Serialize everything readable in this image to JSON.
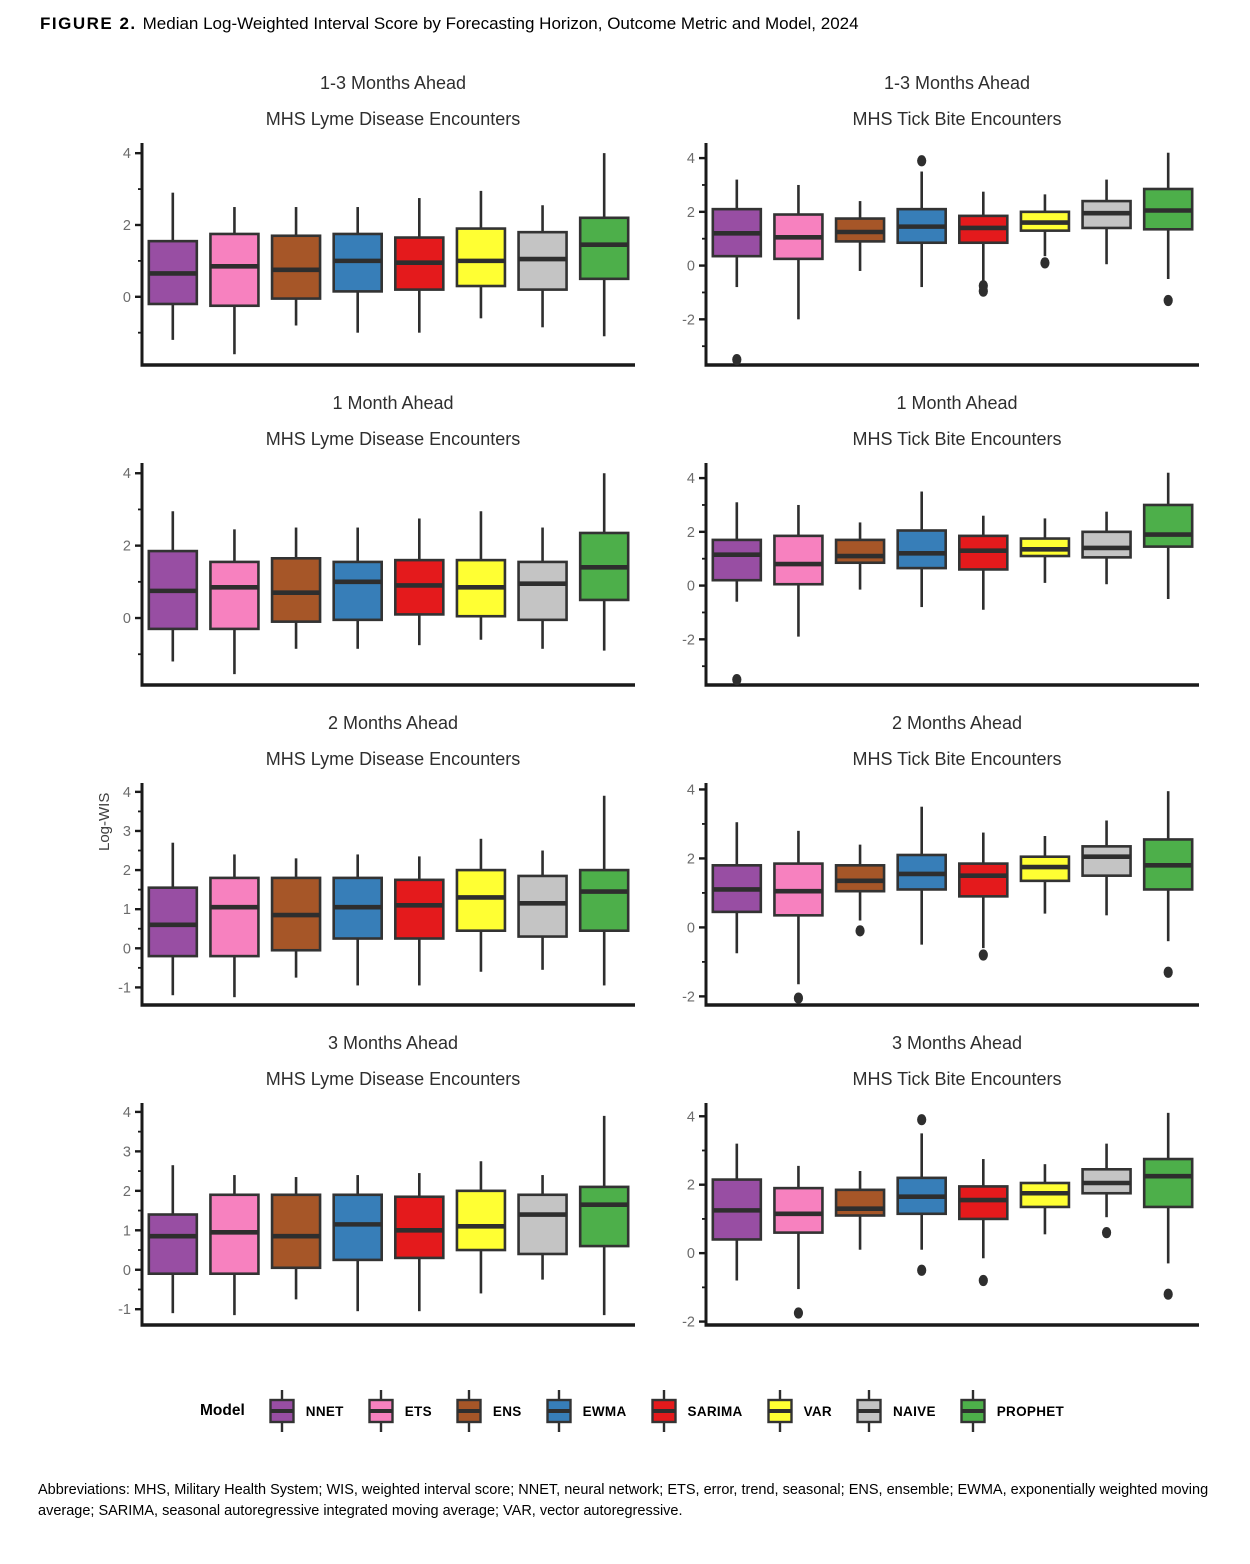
{
  "figure": {
    "label": "FIGURE 2.",
    "title": "Median Log-Weighted Interval Score by Forecasting Horizon, Outcome Metric and Model, 2024"
  },
  "ylabel": "Log-WIS",
  "legend": {
    "label": "Model",
    "items": [
      {
        "name": "NNET",
        "color": "#984EA3"
      },
      {
        "name": "ETS",
        "color": "#F781BF"
      },
      {
        "name": "ENS",
        "color": "#A65628"
      },
      {
        "name": "EWMA",
        "color": "#377EB8"
      },
      {
        "name": "SARIMA",
        "color": "#E41A1C"
      },
      {
        "name": "VAR",
        "color": "#FFFF33"
      },
      {
        "name": "NAIVE",
        "color": "#C4C4C4"
      },
      {
        "name": "PROPHET",
        "color": "#4DAF4A"
      }
    ]
  },
  "style": {
    "box_border": "#333333",
    "line_color": "#2e2e2e",
    "axis_color": "#1a1a1a",
    "tick_label_color": "#6b6b6b"
  },
  "footnote": "Abbreviations: MHS, Military Health System; WIS, weighted interval score; NNET, neural network; ETS, error, trend, seasonal; ENS, ensemble; EWMA, exponentially weighted moving average; SARIMA, seasonal autoregressive integrated moving average; VAR, vector autoregressive.",
  "chart_data": [
    {
      "type": "boxplot",
      "title": "1-3 Months Ahead",
      "subtitle": "MHS Lyme Disease Encounters",
      "ylim": [
        -1.9,
        4.2
      ],
      "yticks": [
        0,
        2,
        4
      ],
      "yticks_minor": [
        -1,
        1,
        3
      ],
      "boxes": [
        {
          "model": "NNET",
          "low": -1.2,
          "q1": -0.2,
          "median": 0.65,
          "q3": 1.55,
          "high": 2.9,
          "outliers": []
        },
        {
          "model": "ETS",
          "low": -1.6,
          "q1": -0.25,
          "median": 0.85,
          "q3": 1.75,
          "high": 2.5,
          "outliers": []
        },
        {
          "model": "ENS",
          "low": -0.8,
          "q1": -0.05,
          "median": 0.75,
          "q3": 1.7,
          "high": 2.5,
          "outliers": []
        },
        {
          "model": "EWMA",
          "low": -1.0,
          "q1": 0.15,
          "median": 1.0,
          "q3": 1.75,
          "high": 2.5,
          "outliers": []
        },
        {
          "model": "SARIMA",
          "low": -1.0,
          "q1": 0.2,
          "median": 0.95,
          "q3": 1.65,
          "high": 2.75,
          "outliers": []
        },
        {
          "model": "VAR",
          "low": -0.6,
          "q1": 0.3,
          "median": 1.0,
          "q3": 1.9,
          "high": 2.95,
          "outliers": []
        },
        {
          "model": "NAIVE",
          "low": -0.85,
          "q1": 0.2,
          "median": 1.05,
          "q3": 1.8,
          "high": 2.55,
          "outliers": []
        },
        {
          "model": "PROPHET",
          "low": -1.1,
          "q1": 0.5,
          "median": 1.45,
          "q3": 2.2,
          "high": 4.0,
          "outliers": []
        }
      ]
    },
    {
      "type": "boxplot",
      "title": "1-3 Months Ahead",
      "subtitle": "MHS Tick Bite Encounters",
      "ylim": [
        -3.7,
        4.45
      ],
      "yticks": [
        -2,
        0,
        2,
        4
      ],
      "yticks_minor": [
        -3,
        -1,
        1,
        3
      ],
      "boxes": [
        {
          "model": "NNET",
          "low": -0.8,
          "q1": 0.35,
          "median": 1.2,
          "q3": 2.1,
          "high": 3.2,
          "outliers": [
            -3.5
          ]
        },
        {
          "model": "ETS",
          "low": -2.0,
          "q1": 0.25,
          "median": 1.05,
          "q3": 1.9,
          "high": 3.0,
          "outliers": []
        },
        {
          "model": "ENS",
          "low": -0.2,
          "q1": 0.9,
          "median": 1.25,
          "q3": 1.75,
          "high": 2.4,
          "outliers": []
        },
        {
          "model": "EWMA",
          "low": -0.8,
          "q1": 0.85,
          "median": 1.45,
          "q3": 2.1,
          "high": 3.5,
          "outliers": [
            3.9
          ]
        },
        {
          "model": "SARIMA",
          "low": -0.6,
          "q1": 0.85,
          "median": 1.4,
          "q3": 1.85,
          "high": 2.75,
          "outliers": [
            -0.75,
            -0.95
          ]
        },
        {
          "model": "VAR",
          "low": 0.35,
          "q1": 1.3,
          "median": 1.6,
          "q3": 2.0,
          "high": 2.65,
          "outliers": [
            0.1
          ]
        },
        {
          "model": "NAIVE",
          "low": 0.05,
          "q1": 1.4,
          "median": 1.95,
          "q3": 2.4,
          "high": 3.2,
          "outliers": []
        },
        {
          "model": "PROPHET",
          "low": -0.5,
          "q1": 1.35,
          "median": 2.05,
          "q3": 2.85,
          "high": 4.2,
          "outliers": [
            -1.3
          ]
        }
      ]
    },
    {
      "type": "boxplot",
      "title": "1 Month Ahead",
      "subtitle": "MHS Lyme Disease Encounters",
      "ylim": [
        -1.85,
        4.2
      ],
      "yticks": [
        0,
        2,
        4
      ],
      "yticks_minor": [
        -1,
        1,
        3
      ],
      "boxes": [
        {
          "model": "NNET",
          "low": -1.2,
          "q1": -0.3,
          "median": 0.75,
          "q3": 1.85,
          "high": 2.95,
          "outliers": []
        },
        {
          "model": "ETS",
          "low": -1.55,
          "q1": -0.3,
          "median": 0.85,
          "q3": 1.55,
          "high": 2.45,
          "outliers": []
        },
        {
          "model": "ENS",
          "low": -0.85,
          "q1": -0.1,
          "median": 0.7,
          "q3": 1.65,
          "high": 2.5,
          "outliers": []
        },
        {
          "model": "EWMA",
          "low": -0.85,
          "q1": -0.05,
          "median": 1.0,
          "q3": 1.55,
          "high": 2.5,
          "outliers": []
        },
        {
          "model": "SARIMA",
          "low": -0.75,
          "q1": 0.1,
          "median": 0.9,
          "q3": 1.6,
          "high": 2.75,
          "outliers": []
        },
        {
          "model": "VAR",
          "low": -0.6,
          "q1": 0.05,
          "median": 0.85,
          "q3": 1.6,
          "high": 2.95,
          "outliers": []
        },
        {
          "model": "NAIVE",
          "low": -0.85,
          "q1": -0.05,
          "median": 0.95,
          "q3": 1.55,
          "high": 2.5,
          "outliers": []
        },
        {
          "model": "PROPHET",
          "low": -0.9,
          "q1": 0.5,
          "median": 1.4,
          "q3": 2.35,
          "high": 4.0,
          "outliers": []
        }
      ]
    },
    {
      "type": "boxplot",
      "title": "1 Month Ahead",
      "subtitle": "MHS Tick Bite Encounters",
      "ylim": [
        -3.7,
        4.45
      ],
      "yticks": [
        -2,
        0,
        2,
        4
      ],
      "yticks_minor": [
        -3,
        -1,
        1,
        3
      ],
      "boxes": [
        {
          "model": "NNET",
          "low": -0.6,
          "q1": 0.2,
          "median": 1.15,
          "q3": 1.7,
          "high": 3.1,
          "outliers": [
            -3.5
          ]
        },
        {
          "model": "ETS",
          "low": -1.9,
          "q1": 0.05,
          "median": 0.8,
          "q3": 1.85,
          "high": 3.0,
          "outliers": []
        },
        {
          "model": "ENS",
          "low": -0.15,
          "q1": 0.85,
          "median": 1.1,
          "q3": 1.7,
          "high": 2.35,
          "outliers": []
        },
        {
          "model": "EWMA",
          "low": -0.8,
          "q1": 0.65,
          "median": 1.2,
          "q3": 2.05,
          "high": 3.5,
          "outliers": []
        },
        {
          "model": "SARIMA",
          "low": -0.9,
          "q1": 0.6,
          "median": 1.3,
          "q3": 1.85,
          "high": 2.6,
          "outliers": []
        },
        {
          "model": "VAR",
          "low": 0.1,
          "q1": 1.1,
          "median": 1.35,
          "q3": 1.75,
          "high": 2.5,
          "outliers": []
        },
        {
          "model": "NAIVE",
          "low": 0.05,
          "q1": 1.05,
          "median": 1.4,
          "q3": 2.0,
          "high": 2.75,
          "outliers": []
        },
        {
          "model": "PROPHET",
          "low": -0.5,
          "q1": 1.45,
          "median": 1.9,
          "q3": 3.0,
          "high": 4.2,
          "outliers": []
        }
      ]
    },
    {
      "type": "boxplot",
      "title": "2 Months Ahead",
      "subtitle": "MHS Lyme Disease Encounters",
      "ylim": [
        -1.45,
        4.15
      ],
      "yticks": [
        -1,
        0,
        1,
        2,
        3,
        4
      ],
      "yticks_minor": [
        -0.5,
        0.5,
        1.5,
        2.5,
        3.5
      ],
      "boxes": [
        {
          "model": "NNET",
          "low": -1.2,
          "q1": -0.2,
          "median": 0.6,
          "q3": 1.55,
          "high": 2.7,
          "outliers": []
        },
        {
          "model": "ETS",
          "low": -1.25,
          "q1": -0.2,
          "median": 1.05,
          "q3": 1.8,
          "high": 2.4,
          "outliers": []
        },
        {
          "model": "ENS",
          "low": -0.75,
          "q1": -0.05,
          "median": 0.85,
          "q3": 1.8,
          "high": 2.3,
          "outliers": []
        },
        {
          "model": "EWMA",
          "low": -0.95,
          "q1": 0.25,
          "median": 1.05,
          "q3": 1.8,
          "high": 2.4,
          "outliers": []
        },
        {
          "model": "SARIMA",
          "low": -0.95,
          "q1": 0.25,
          "median": 1.1,
          "q3": 1.75,
          "high": 2.35,
          "outliers": []
        },
        {
          "model": "VAR",
          "low": -0.6,
          "q1": 0.45,
          "median": 1.3,
          "q3": 2.0,
          "high": 2.8,
          "outliers": []
        },
        {
          "model": "NAIVE",
          "low": -0.55,
          "q1": 0.3,
          "median": 1.15,
          "q3": 1.85,
          "high": 2.5,
          "outliers": []
        },
        {
          "model": "PROPHET",
          "low": -0.95,
          "q1": 0.45,
          "median": 1.45,
          "q3": 2.0,
          "high": 3.9,
          "outliers": []
        }
      ]
    },
    {
      "type": "boxplot",
      "title": "2 Months Ahead",
      "subtitle": "MHS Tick Bite Encounters",
      "ylim": [
        -2.25,
        4.1
      ],
      "yticks": [
        -2,
        0,
        2,
        4
      ],
      "yticks_minor": [
        -1,
        1,
        3
      ],
      "boxes": [
        {
          "model": "NNET",
          "low": -0.75,
          "q1": 0.45,
          "median": 1.1,
          "q3": 1.8,
          "high": 3.05,
          "outliers": []
        },
        {
          "model": "ETS",
          "low": -1.65,
          "q1": 0.35,
          "median": 1.05,
          "q3": 1.85,
          "high": 2.8,
          "outliers": [
            -2.05
          ]
        },
        {
          "model": "ENS",
          "low": 0.2,
          "q1": 1.05,
          "median": 1.35,
          "q3": 1.8,
          "high": 2.4,
          "outliers": [
            -0.1
          ]
        },
        {
          "model": "EWMA",
          "low": -0.5,
          "q1": 1.1,
          "median": 1.55,
          "q3": 2.1,
          "high": 3.5,
          "outliers": []
        },
        {
          "model": "SARIMA",
          "low": -0.6,
          "q1": 0.9,
          "median": 1.5,
          "q3": 1.85,
          "high": 2.75,
          "outliers": [
            -0.8
          ]
        },
        {
          "model": "VAR",
          "low": 0.4,
          "q1": 1.35,
          "median": 1.75,
          "q3": 2.05,
          "high": 2.65,
          "outliers": []
        },
        {
          "model": "NAIVE",
          "low": 0.35,
          "q1": 1.5,
          "median": 2.05,
          "q3": 2.35,
          "high": 3.1,
          "outliers": []
        },
        {
          "model": "PROPHET",
          "low": -0.4,
          "q1": 1.1,
          "median": 1.8,
          "q3": 2.55,
          "high": 3.95,
          "outliers": [
            -1.3
          ]
        }
      ]
    },
    {
      "type": "boxplot",
      "title": "3 Months Ahead",
      "subtitle": "MHS Lyme Disease Encounters",
      "ylim": [
        -1.4,
        4.15
      ],
      "yticks": [
        -1,
        0,
        1,
        2,
        3,
        4
      ],
      "yticks_minor": [
        -0.5,
        0.5,
        1.5,
        2.5,
        3.5
      ],
      "boxes": [
        {
          "model": "NNET",
          "low": -1.1,
          "q1": -0.1,
          "median": 0.85,
          "q3": 1.4,
          "high": 2.65,
          "outliers": []
        },
        {
          "model": "ETS",
          "low": -1.15,
          "q1": -0.1,
          "median": 0.95,
          "q3": 1.9,
          "high": 2.4,
          "outliers": []
        },
        {
          "model": "ENS",
          "low": -0.75,
          "q1": 0.05,
          "median": 0.85,
          "q3": 1.9,
          "high": 2.35,
          "outliers": []
        },
        {
          "model": "EWMA",
          "low": -1.05,
          "q1": 0.25,
          "median": 1.15,
          "q3": 1.9,
          "high": 2.4,
          "outliers": []
        },
        {
          "model": "SARIMA",
          "low": -1.05,
          "q1": 0.3,
          "median": 1.0,
          "q3": 1.85,
          "high": 2.45,
          "outliers": []
        },
        {
          "model": "VAR",
          "low": -0.6,
          "q1": 0.5,
          "median": 1.1,
          "q3": 2.0,
          "high": 2.75,
          "outliers": []
        },
        {
          "model": "NAIVE",
          "low": -0.25,
          "q1": 0.4,
          "median": 1.4,
          "q3": 1.9,
          "high": 2.4,
          "outliers": []
        },
        {
          "model": "PROPHET",
          "low": -1.15,
          "q1": 0.6,
          "median": 1.65,
          "q3": 2.1,
          "high": 3.9,
          "outliers": []
        }
      ]
    },
    {
      "type": "boxplot",
      "title": "3 Months Ahead",
      "subtitle": "MHS Tick Bite Encounters",
      "ylim": [
        -2.1,
        4.3
      ],
      "yticks": [
        -2,
        0,
        2,
        4
      ],
      "yticks_minor": [
        -1,
        1,
        3
      ],
      "boxes": [
        {
          "model": "NNET",
          "low": -0.8,
          "q1": 0.4,
          "median": 1.25,
          "q3": 2.15,
          "high": 3.2,
          "outliers": []
        },
        {
          "model": "ETS",
          "low": -1.05,
          "q1": 0.6,
          "median": 1.15,
          "q3": 1.9,
          "high": 2.55,
          "outliers": [
            -1.75
          ]
        },
        {
          "model": "ENS",
          "low": 0.1,
          "q1": 1.1,
          "median": 1.3,
          "q3": 1.85,
          "high": 2.4,
          "outliers": []
        },
        {
          "model": "EWMA",
          "low": 0.1,
          "q1": 1.15,
          "median": 1.65,
          "q3": 2.2,
          "high": 3.5,
          "outliers": [
            3.9,
            -0.5
          ]
        },
        {
          "model": "SARIMA",
          "low": -0.15,
          "q1": 1.0,
          "median": 1.55,
          "q3": 1.95,
          "high": 2.75,
          "outliers": [
            -0.8
          ]
        },
        {
          "model": "VAR",
          "low": 0.55,
          "q1": 1.35,
          "median": 1.75,
          "q3": 2.05,
          "high": 2.6,
          "outliers": []
        },
        {
          "model": "NAIVE",
          "low": 1.05,
          "q1": 1.75,
          "median": 2.05,
          "q3": 2.45,
          "high": 3.2,
          "outliers": [
            0.6
          ]
        },
        {
          "model": "PROPHET",
          "low": -0.3,
          "q1": 1.35,
          "median": 2.25,
          "q3": 2.75,
          "high": 4.1,
          "outliers": [
            -1.2
          ]
        }
      ]
    }
  ]
}
